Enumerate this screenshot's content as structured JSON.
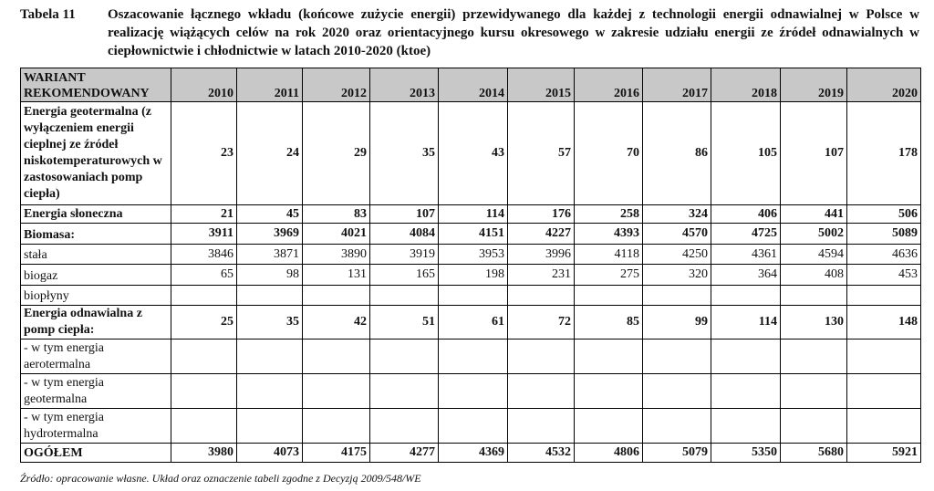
{
  "caption": {
    "label": "Tabela 11",
    "text": "Oszacowanie łącznego wkładu (końcowe zużycie energii) przewidywanego dla każdej z technologii energii odnawialnej w Polsce w realizację wiążących celów na rok 2020 oraz orientacyjnego kursu okresowego w zakresie udziału energii ze źródeł odnawialnych w  ciepłownictwie i chłodnictwie w latach 2010-2020 (ktoe)"
  },
  "table": {
    "header_label": "WARIANT REKOMENDOWANY",
    "years": [
      "2010",
      "2011",
      "2012",
      "2013",
      "2014",
      "2015",
      "2016",
      "2017",
      "2018",
      "2019",
      "2020"
    ],
    "rows": [
      {
        "label": "Energia geotermalna (z wyłączeniem energii cieplnej ze źródeł niskotemperaturowych w zastosowaniach pomp ciepła)",
        "values": [
          "23",
          "24",
          "29",
          "35",
          "43",
          "57",
          "70",
          "86",
          "105",
          "107",
          "178"
        ]
      },
      {
        "label": "Energia słoneczna",
        "values": [
          "21",
          "45",
          "83",
          "107",
          "114",
          "176",
          "258",
          "324",
          "406",
          "441",
          "506"
        ]
      },
      {
        "label": "Biomasa:",
        "values": [
          "3911",
          "3969",
          "4021",
          "4084",
          "4151",
          "4227",
          "4393",
          "4570",
          "4725",
          "5002",
          "5089"
        ]
      },
      {
        "label": "stała",
        "values": [
          "3846",
          "3871",
          "3890",
          "3919",
          "3953",
          "3996",
          "4118",
          "4250",
          "4361",
          "4594",
          "4636"
        ]
      },
      {
        "label": "biogaz",
        "values": [
          "65",
          "98",
          "131",
          "165",
          "198",
          "231",
          "275",
          "320",
          "364",
          "408",
          "453"
        ]
      },
      {
        "label": "biopłyny",
        "values": [
          "",
          "",
          "",
          "",
          "",
          "",
          "",
          "",
          "",
          "",
          ""
        ]
      },
      {
        "label": "Energia odnawialna z pomp ciepła:",
        "values": [
          "25",
          "35",
          "42",
          "51",
          "61",
          "72",
          "85",
          "99",
          "114",
          "130",
          "148"
        ]
      },
      {
        "label": "- w tym energia aerotermalna",
        "values": [
          "",
          "",
          "",
          "",
          "",
          "",
          "",
          "",
          "",
          "",
          ""
        ]
      },
      {
        "label": "- w tym energia geotermalna",
        "values": [
          "",
          "",
          "",
          "",
          "",
          "",
          "",
          "",
          "",
          "",
          ""
        ]
      },
      {
        "label": "- w tym energia hydrotermalna",
        "values": [
          "",
          "",
          "",
          "",
          "",
          "",
          "",
          "",
          "",
          "",
          ""
        ]
      },
      {
        "label": "OGÓŁEM",
        "values": [
          "3980",
          "4073",
          "4175",
          "4277",
          "4369",
          "4532",
          "4806",
          "5079",
          "5350",
          "5680",
          "5921"
        ]
      }
    ]
  },
  "source": "Źródło: opracowanie własne. Układ oraz oznaczenie tabeli zgodne z Decyzją 2009/548/WE"
}
